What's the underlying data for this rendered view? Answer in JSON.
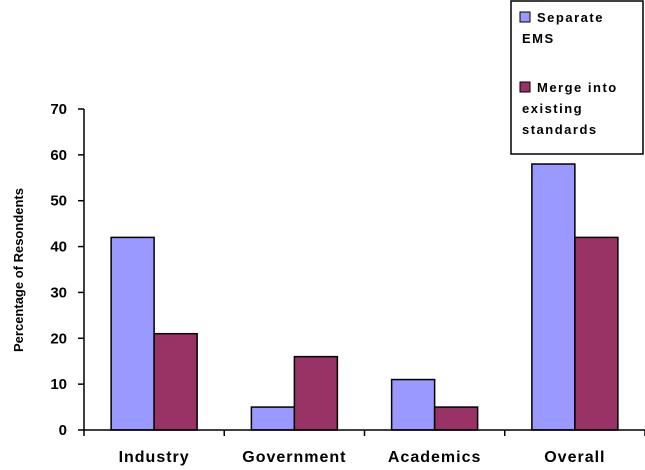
{
  "chart_data": {
    "type": "bar",
    "categories": [
      "Industry",
      "Government",
      "Academics",
      "Overall"
    ],
    "series": [
      {
        "name": "Separate EMS",
        "values": [
          42,
          5,
          11,
          58
        ],
        "color": "#9999ff"
      },
      {
        "name": "Merge into existing standards",
        "values": [
          21,
          16,
          5,
          42
        ],
        "color": "#993366"
      }
    ],
    "xlabel": "",
    "ylabel": "Percentage of Resondents",
    "ylim": [
      0,
      70
    ],
    "yticks": [
      0,
      10,
      20,
      30,
      40,
      50,
      60,
      70
    ],
    "grid": false,
    "legend_position": "top-right",
    "legend_lines": [
      [
        "Separate",
        "EMS"
      ],
      [
        "Merge into",
        "existing",
        "standards"
      ]
    ]
  }
}
